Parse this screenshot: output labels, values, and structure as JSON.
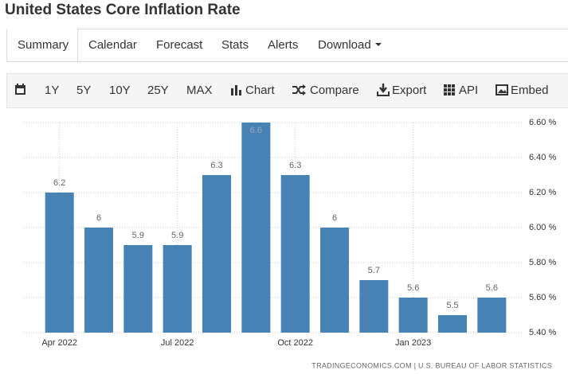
{
  "page": {
    "title": "United States Core Inflation Rate",
    "tabs": [
      "Summary",
      "Calendar",
      "Forecast",
      "Stats",
      "Alerts",
      "Download"
    ],
    "toolbar": [
      "1Y",
      "5Y",
      "10Y",
      "25Y",
      "MAX",
      "Chart",
      "Compare",
      "Export",
      "API",
      "Embed"
    ],
    "source": "TRADINGECONOMICS.COM | U.S. BUREAU OF LABOR STATISTICS"
  },
  "chart_data": {
    "type": "bar",
    "categories": [
      "Apr 2022",
      null,
      null,
      "Jul 2022",
      null,
      null,
      "Oct 2022",
      null,
      null,
      "Jan 2023",
      null,
      null
    ],
    "values": [
      6.2,
      6,
      5.9,
      5.9,
      6.3,
      6.6,
      6.3,
      6,
      5.7,
      5.6,
      5.5,
      5.6
    ],
    "color": "#4682b4",
    "ylim": [
      5.4,
      6.6
    ],
    "yticks": [
      {
        "value": 5.4,
        "label": "5.40 %"
      },
      {
        "value": 5.6,
        "label": "5.60 %"
      },
      {
        "value": 5.8,
        "label": "5.80 %"
      },
      {
        "value": 6.0,
        "label": "6.00 %"
      },
      {
        "value": 6.2,
        "label": "6.20 %"
      },
      {
        "value": 6.4,
        "label": "6.40 %"
      },
      {
        "value": 6.6,
        "label": "6.60 %"
      }
    ],
    "grid": true
  }
}
